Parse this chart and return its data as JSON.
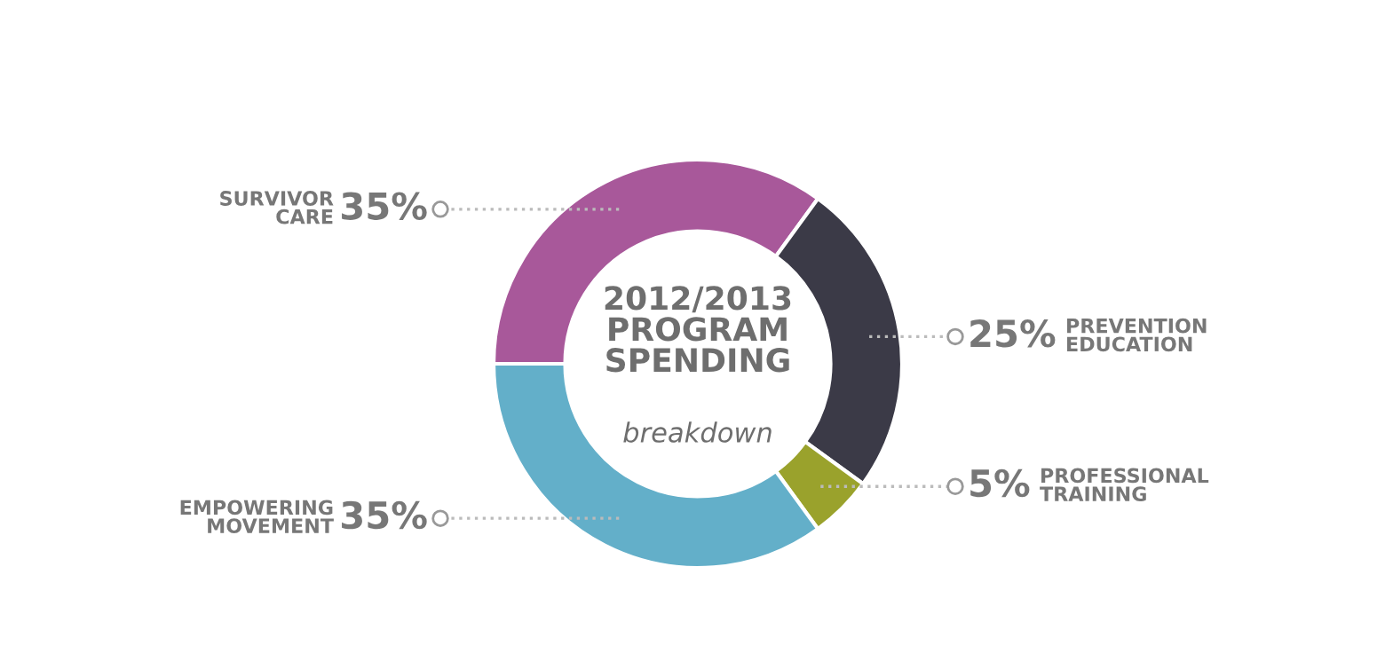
{
  "chart_data": {
    "type": "donut",
    "title": "2012/2013\nPROGRAM\nSPENDING",
    "subtitle": "breakdown",
    "categories": [
      "SURVIVOR\nCARE",
      "PREVENTION\nEDUCATION",
      "PROFESSIONAL\nTRAINING",
      "EMPOWERING\nMOVEMENT"
    ],
    "values": [
      35,
      25,
      5,
      35
    ],
    "value_labels": [
      "35%",
      "25%",
      "5%",
      "35%"
    ],
    "colors": [
      "#a8589a",
      "#3b3a47",
      "#9aa22c",
      "#63afc9"
    ]
  }
}
